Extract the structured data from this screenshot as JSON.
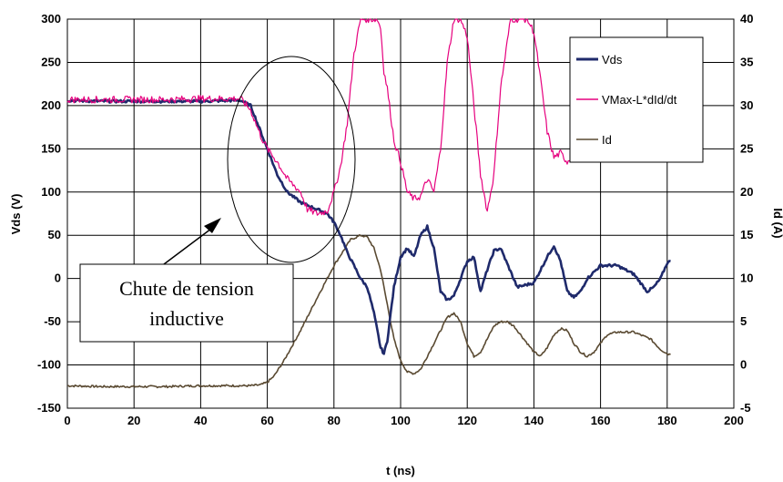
{
  "chart_data": {
    "type": "line",
    "xlabel": "t (ns)",
    "ylabel": "Vds (V)",
    "y2label": "Id (A)",
    "xlim": [
      0,
      200
    ],
    "ylim": [
      -150,
      300
    ],
    "y2lim": [
      -5,
      40
    ],
    "x_ticks": [
      "0",
      "20",
      "40",
      "60",
      "80",
      "100",
      "120",
      "140",
      "160",
      "180",
      "200"
    ],
    "y_ticks": [
      "-150",
      "-100",
      "-50",
      "0",
      "50",
      "100",
      "150",
      "200",
      "250",
      "300"
    ],
    "y2_ticks": [
      "-5",
      "0",
      "5",
      "10",
      "15",
      "20",
      "25",
      "30",
      "35",
      "40"
    ],
    "grid": true,
    "legend_position": "top-right",
    "series": [
      {
        "name": "Vds",
        "axis": "left",
        "color": "#1f2a6b",
        "x": [
          0,
          10,
          20,
          30,
          40,
          50,
          52,
          55,
          58,
          60,
          63,
          66,
          70,
          75,
          78,
          80,
          82,
          84,
          86,
          88,
          90,
          92,
          94,
          95,
          96,
          98,
          100,
          102,
          104,
          106,
          108,
          110,
          112,
          114,
          116,
          118,
          120,
          122,
          124,
          126,
          128,
          130,
          135,
          140,
          144,
          146,
          148,
          150,
          152,
          154,
          156,
          160,
          165,
          170,
          174,
          176,
          178,
          180,
          181
        ],
        "y": [
          206,
          205,
          205,
          205,
          205,
          206,
          206,
          200,
          170,
          150,
          120,
          100,
          88,
          80,
          75,
          65,
          50,
          30,
          15,
          0,
          -10,
          -40,
          -80,
          -87,
          -72,
          -10,
          25,
          35,
          25,
          50,
          60,
          35,
          -15,
          -25,
          -20,
          0,
          20,
          25,
          -15,
          10,
          32,
          35,
          -10,
          -5,
          25,
          38,
          20,
          -15,
          -22,
          -15,
          0,
          15,
          15,
          5,
          -15,
          -10,
          0,
          18,
          20
        ]
      },
      {
        "name": "VMax-L*dId/dt",
        "axis": "left",
        "color": "#e6007e",
        "x": [
          0,
          10,
          20,
          30,
          40,
          50,
          52,
          55,
          58,
          60,
          63,
          66,
          70,
          72,
          75,
          78,
          80,
          82,
          84,
          86,
          88,
          90,
          92,
          93,
          94,
          95,
          96,
          98,
          100,
          102,
          104,
          106,
          108,
          110,
          112,
          114,
          116,
          118,
          120,
          122,
          124,
          126,
          128,
          130,
          133,
          136,
          138,
          140,
          142,
          144,
          146,
          148,
          150,
          152,
          154,
          156,
          160,
          164,
          166
        ],
        "y": [
          207,
          207,
          207,
          207,
          208,
          208,
          208,
          195,
          165,
          150,
          135,
          115,
          100,
          80,
          75,
          78,
          100,
          130,
          180,
          260,
          300,
          300,
          300,
          300,
          290,
          240,
          220,
          160,
          135,
          100,
          92,
          95,
          115,
          100,
          150,
          250,
          300,
          300,
          280,
          200,
          120,
          78,
          120,
          220,
          300,
          300,
          300,
          285,
          230,
          170,
          140,
          145,
          135,
          145,
          170,
          185,
          190,
          200,
          170
        ]
      },
      {
        "name": "Id",
        "axis": "right",
        "color": "#5a4a32",
        "x": [
          0,
          10,
          20,
          30,
          40,
          50,
          55,
          58,
          60,
          62,
          65,
          70,
          75,
          80,
          85,
          88,
          90,
          92,
          94,
          96,
          98,
          100,
          102,
          104,
          106,
          108,
          110,
          112,
          114,
          116,
          118,
          120,
          122,
          124,
          126,
          128,
          130,
          132,
          134,
          136,
          138,
          140,
          142,
          144,
          146,
          148,
          150,
          152,
          154,
          156,
          158,
          160,
          162,
          165,
          170,
          175,
          178,
          180,
          181
        ],
        "y": [
          -2.4,
          -2.5,
          -2.5,
          -2.5,
          -2.4,
          -2.4,
          -2.4,
          -2.3,
          -2.0,
          -1.3,
          0.5,
          4.0,
          7.8,
          11.5,
          14.5,
          15.0,
          14.8,
          13.5,
          11.0,
          7.0,
          3.0,
          0.5,
          -0.8,
          -1.0,
          -0.5,
          1.0,
          2.5,
          4.0,
          5.5,
          6.0,
          5.0,
          2.5,
          1.0,
          1.5,
          3.0,
          4.5,
          5.0,
          5.0,
          4.5,
          3.5,
          2.5,
          1.5,
          1.0,
          2.0,
          3.5,
          4.2,
          4.0,
          2.5,
          1.5,
          1.0,
          1.5,
          2.5,
          3.5,
          3.8,
          3.8,
          3.0,
          1.8,
          1.3,
          1.2
        ]
      }
    ],
    "annotation": {
      "text_line1": "Chute de tension",
      "text_line2": "inductive"
    }
  }
}
